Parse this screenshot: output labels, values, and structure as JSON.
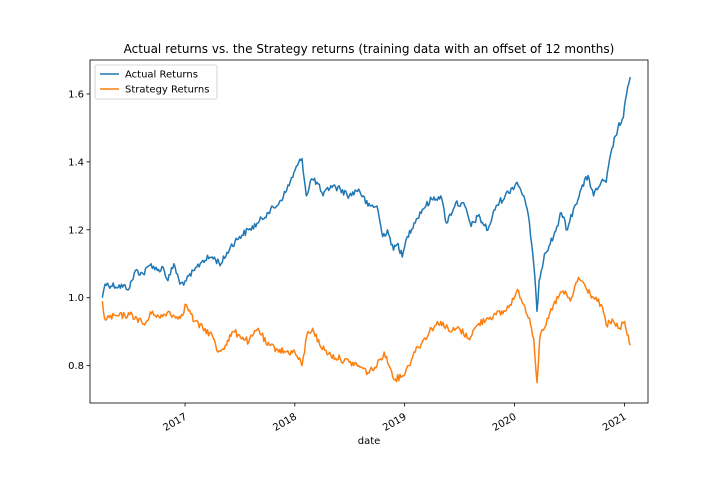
{
  "chart_data": {
    "type": "line",
    "title": "Actual returns vs. the Strategy returns (training data with an offset of 12 months)",
    "xlabel": "date",
    "ylabel": "",
    "xlim": [
      "2016-02-20",
      "2021-03-20"
    ],
    "ylim": [
      0.69,
      1.7
    ],
    "xticks": [
      {
        "date": "2017-01-01",
        "label": "2017"
      },
      {
        "date": "2018-01-01",
        "label": "2018"
      },
      {
        "date": "2019-01-01",
        "label": "2019"
      },
      {
        "date": "2020-01-01",
        "label": "2020"
      },
      {
        "date": "2021-01-01",
        "label": "2021"
      }
    ],
    "yticks": [
      {
        "value": 0.8,
        "label": "0.8"
      },
      {
        "value": 1.0,
        "label": "1.0"
      },
      {
        "value": 1.2,
        "label": "1.2"
      },
      {
        "value": 1.4,
        "label": "1.4"
      },
      {
        "value": 1.6,
        "label": "1.6"
      }
    ],
    "grid": false,
    "legend_position": "top-left",
    "series": [
      {
        "name": "Actual Returns",
        "color": "#1f77b4",
        "points": [
          [
            "2016-04-01",
            1.0
          ],
          [
            "2016-04-05",
            1.02
          ],
          [
            "2016-04-10",
            1.04
          ],
          [
            "2016-07-01",
            1.03
          ],
          [
            "2016-07-20",
            1.08
          ],
          [
            "2016-08-15",
            1.07
          ],
          [
            "2016-09-10",
            1.1
          ],
          [
            "2016-10-01",
            1.08
          ],
          [
            "2016-10-20",
            1.09
          ],
          [
            "2016-11-05",
            1.05
          ],
          [
            "2016-11-25",
            1.1
          ],
          [
            "2016-12-15",
            1.04
          ],
          [
            "2017-01-05",
            1.05
          ],
          [
            "2017-02-01",
            1.08
          ],
          [
            "2017-03-01",
            1.11
          ],
          [
            "2017-04-01",
            1.12
          ],
          [
            "2017-05-01",
            1.1
          ],
          [
            "2017-06-01",
            1.15
          ],
          [
            "2017-07-01",
            1.18
          ],
          [
            "2017-08-01",
            1.2
          ],
          [
            "2017-09-01",
            1.22
          ],
          [
            "2017-10-01",
            1.25
          ],
          [
            "2017-11-01",
            1.27
          ],
          [
            "2017-12-01",
            1.31
          ],
          [
            "2018-01-10",
            1.39
          ],
          [
            "2018-01-25",
            1.41
          ],
          [
            "2018-02-08",
            1.3
          ],
          [
            "2018-02-25",
            1.35
          ],
          [
            "2018-03-15",
            1.34
          ],
          [
            "2018-04-05",
            1.3
          ],
          [
            "2018-05-01",
            1.33
          ],
          [
            "2018-06-01",
            1.32
          ],
          [
            "2018-07-01",
            1.3
          ],
          [
            "2018-08-01",
            1.32
          ],
          [
            "2018-09-01",
            1.27
          ],
          [
            "2018-10-01",
            1.27
          ],
          [
            "2018-10-20",
            1.18
          ],
          [
            "2018-11-05",
            1.2
          ],
          [
            "2018-11-25",
            1.14
          ],
          [
            "2018-12-10",
            1.16
          ],
          [
            "2018-12-24",
            1.12
          ],
          [
            "2019-01-10",
            1.18
          ],
          [
            "2019-02-01",
            1.22
          ],
          [
            "2019-03-01",
            1.26
          ],
          [
            "2019-04-01",
            1.29
          ],
          [
            "2019-05-01",
            1.3
          ],
          [
            "2019-05-20",
            1.22
          ],
          [
            "2019-06-20",
            1.28
          ],
          [
            "2019-07-20",
            1.27
          ],
          [
            "2019-08-10",
            1.21
          ],
          [
            "2019-09-01",
            1.24
          ],
          [
            "2019-10-05",
            1.2
          ],
          [
            "2019-11-01",
            1.27
          ],
          [
            "2019-12-01",
            1.3
          ],
          [
            "2020-01-10",
            1.34
          ],
          [
            "2020-02-01",
            1.3
          ],
          [
            "2020-02-20",
            1.22
          ],
          [
            "2020-03-05",
            1.1
          ],
          [
            "2020-03-16",
            0.96
          ],
          [
            "2020-03-23",
            1.05
          ],
          [
            "2020-04-10",
            1.13
          ],
          [
            "2020-05-10",
            1.18
          ],
          [
            "2020-06-05",
            1.25
          ],
          [
            "2020-06-25",
            1.2
          ],
          [
            "2020-07-15",
            1.26
          ],
          [
            "2020-08-10",
            1.32
          ],
          [
            "2020-09-02",
            1.36
          ],
          [
            "2020-09-20",
            1.3
          ],
          [
            "2020-10-15",
            1.34
          ],
          [
            "2020-11-01",
            1.34
          ],
          [
            "2020-11-20",
            1.44
          ],
          [
            "2020-12-10",
            1.5
          ],
          [
            "2020-12-28",
            1.53
          ],
          [
            "2021-01-08",
            1.6
          ],
          [
            "2021-01-15",
            1.63
          ],
          [
            "2021-01-20",
            1.65
          ]
        ]
      },
      {
        "name": "Strategy Returns",
        "color": "#ff7f0e",
        "points": [
          [
            "2016-04-01",
            0.99
          ],
          [
            "2016-04-08",
            0.94
          ],
          [
            "2016-07-01",
            0.95
          ],
          [
            "2016-07-25",
            0.94
          ],
          [
            "2016-08-20",
            0.92
          ],
          [
            "2016-09-15",
            0.96
          ],
          [
            "2016-10-10",
            0.94
          ],
          [
            "2016-11-10",
            0.96
          ],
          [
            "2016-12-01",
            0.94
          ],
          [
            "2016-12-20",
            0.95
          ],
          [
            "2017-01-05",
            0.98
          ],
          [
            "2017-02-01",
            0.93
          ],
          [
            "2017-03-01",
            0.91
          ],
          [
            "2017-04-01",
            0.89
          ],
          [
            "2017-04-20",
            0.84
          ],
          [
            "2017-05-15",
            0.86
          ],
          [
            "2017-06-10",
            0.9
          ],
          [
            "2017-07-01",
            0.89
          ],
          [
            "2017-08-01",
            0.87
          ],
          [
            "2017-09-01",
            0.91
          ],
          [
            "2017-10-01",
            0.86
          ],
          [
            "2017-11-01",
            0.85
          ],
          [
            "2017-12-01",
            0.84
          ],
          [
            "2018-01-01",
            0.84
          ],
          [
            "2018-01-25",
            0.8
          ],
          [
            "2018-02-10",
            0.89
          ],
          [
            "2018-03-01",
            0.91
          ],
          [
            "2018-03-25",
            0.86
          ],
          [
            "2018-05-01",
            0.83
          ],
          [
            "2018-06-01",
            0.82
          ],
          [
            "2018-07-01",
            0.81
          ],
          [
            "2018-08-01",
            0.8
          ],
          [
            "2018-09-01",
            0.78
          ],
          [
            "2018-10-01",
            0.8
          ],
          [
            "2018-10-25",
            0.84
          ],
          [
            "2018-11-10",
            0.8
          ],
          [
            "2018-12-01",
            0.76
          ],
          [
            "2018-12-24",
            0.77
          ],
          [
            "2019-01-15",
            0.8
          ],
          [
            "2019-02-01",
            0.84
          ],
          [
            "2019-03-01",
            0.87
          ],
          [
            "2019-04-01",
            0.91
          ],
          [
            "2019-05-01",
            0.93
          ],
          [
            "2019-06-01",
            0.9
          ],
          [
            "2019-07-01",
            0.91
          ],
          [
            "2019-08-01",
            0.88
          ],
          [
            "2019-09-01",
            0.92
          ],
          [
            "2019-10-01",
            0.94
          ],
          [
            "2019-11-01",
            0.95
          ],
          [
            "2019-12-01",
            0.96
          ],
          [
            "2020-01-15",
            1.02
          ],
          [
            "2020-02-01",
            0.98
          ],
          [
            "2020-02-20",
            0.94
          ],
          [
            "2020-03-05",
            0.88
          ],
          [
            "2020-03-16",
            0.75
          ],
          [
            "2020-03-25",
            0.88
          ],
          [
            "2020-04-15",
            0.92
          ],
          [
            "2020-05-10",
            0.98
          ],
          [
            "2020-06-10",
            1.02
          ],
          [
            "2020-07-05",
            0.99
          ],
          [
            "2020-08-01",
            1.06
          ],
          [
            "2020-08-25",
            1.03
          ],
          [
            "2020-09-20",
            1.0
          ],
          [
            "2020-10-15",
            0.98
          ],
          [
            "2020-11-01",
            0.92
          ],
          [
            "2020-11-25",
            0.93
          ],
          [
            "2020-12-15",
            0.91
          ],
          [
            "2021-01-01",
            0.93
          ],
          [
            "2021-01-10",
            0.89
          ],
          [
            "2021-01-20",
            0.86
          ]
        ]
      }
    ]
  }
}
